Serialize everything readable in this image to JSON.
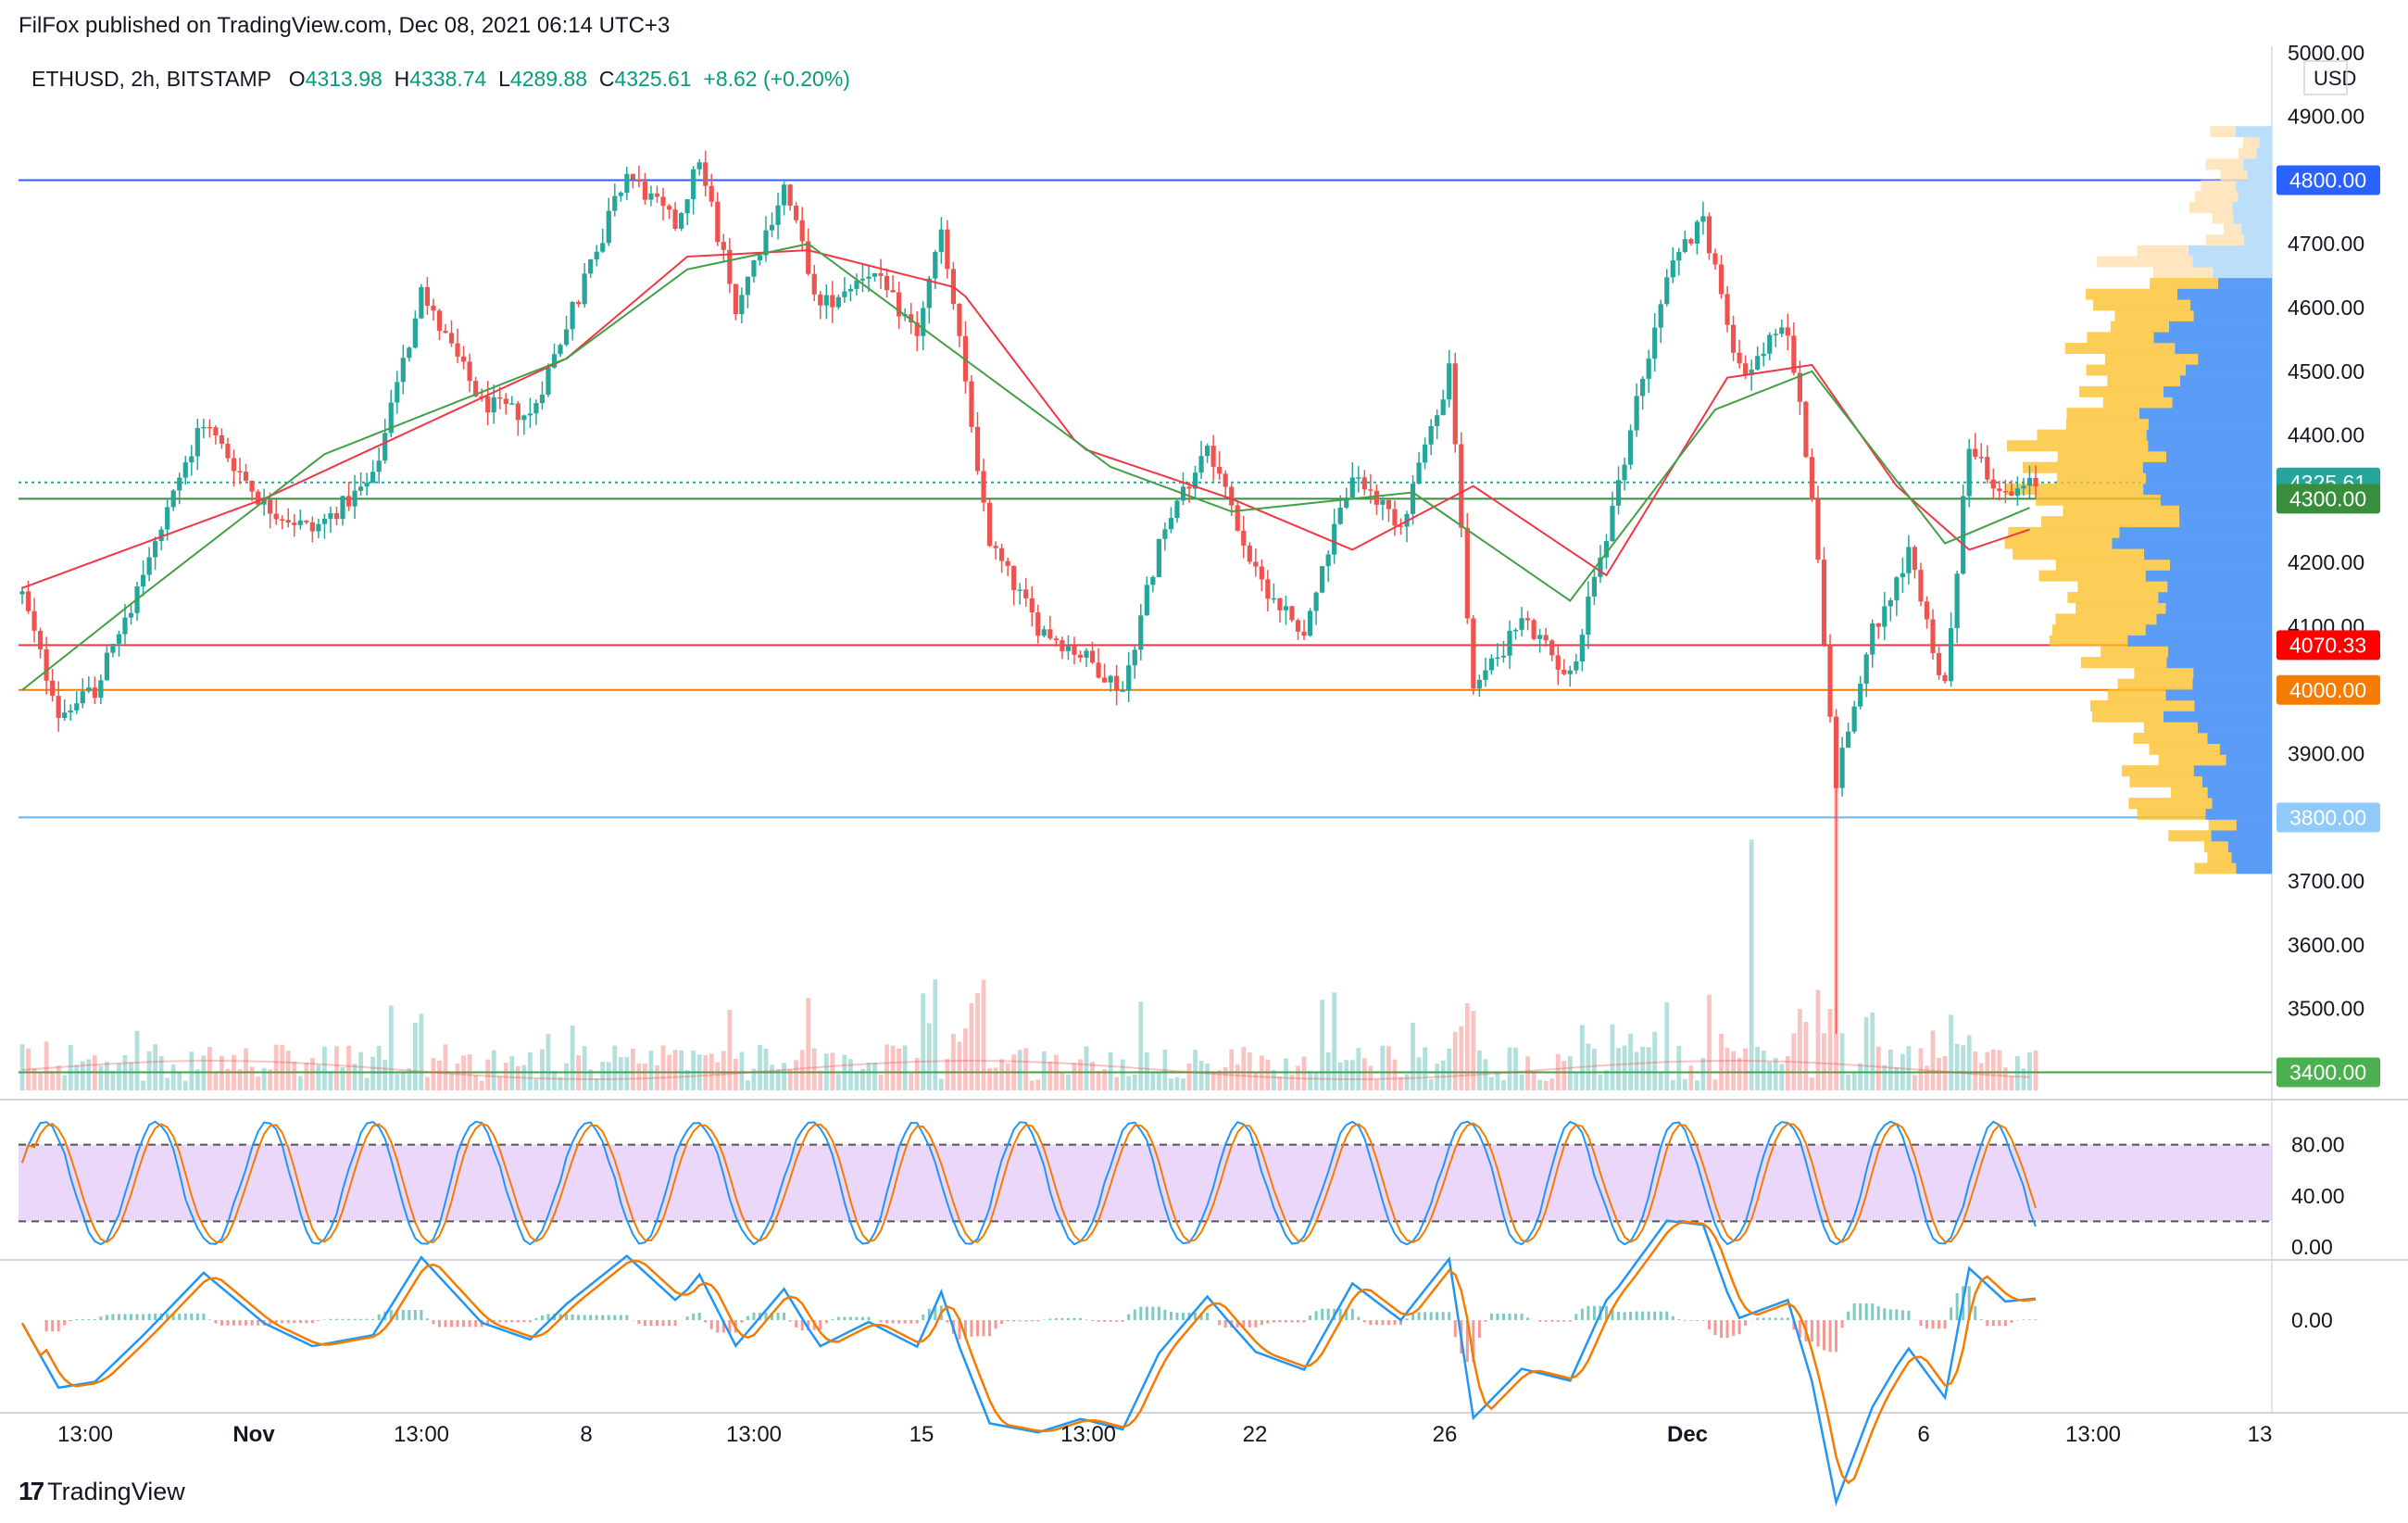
{
  "header": {
    "publisher_line": "FilFox published on TradingView.com, Dec 08, 2021 06:14 UTC+3"
  },
  "legend": {
    "symbol": "ETHUSD, 2h, BITSTAMP",
    "open_label": "O",
    "open": "4313.98",
    "high_label": "H",
    "high": "4338.74",
    "low_label": "L",
    "low": "4289.88",
    "close_label": "C",
    "close": "4325.61",
    "change": "+8.62 (+0.20%)"
  },
  "footer": {
    "brand": "TradingView",
    "logo_glyph": "17"
  },
  "colors": {
    "up": "#26a69a",
    "down": "#ef5350",
    "ma_fast": "#f23645",
    "ma_slow": "#43a047",
    "stoch_band": "#e1c6f7",
    "macd_line": "#2196f3",
    "signal_line": "#f57c00"
  },
  "chart_data": [
    {
      "type": "candlestick",
      "symbol": "ETHUSD",
      "interval": "2h",
      "exchange": "BITSTAMP",
      "currency": "USD",
      "x_ticks": [
        "13:00",
        "Nov",
        "13:00",
        "8",
        "13:00",
        "15",
        "13:00",
        "22",
        "26",
        "Dec",
        "6",
        "13:00",
        "13"
      ],
      "y_ticks": [
        "5000.00",
        "4900.00",
        "4800.00",
        "4700.00",
        "4600.00",
        "4500.00",
        "4400.00",
        "4300.00",
        "4200.00",
        "4100.00",
        "4000.00",
        "3900.00",
        "3800.00",
        "3700.00",
        "3600.00",
        "3500.00",
        "3400.00"
      ],
      "ylim": [
        3360,
        5010
      ],
      "price_path": [
        {
          "t": 0,
          "p": 4150
        },
        {
          "t": 6,
          "p": 3960
        },
        {
          "t": 12,
          "p": 4000
        },
        {
          "t": 20,
          "p": 4180
        },
        {
          "t": 30,
          "p": 4420
        },
        {
          "t": 40,
          "p": 4290
        },
        {
          "t": 48,
          "p": 4250
        },
        {
          "t": 58,
          "p": 4330
        },
        {
          "t": 66,
          "p": 4620
        },
        {
          "t": 76,
          "p": 4450
        },
        {
          "t": 84,
          "p": 4430
        },
        {
          "t": 92,
          "p": 4620
        },
        {
          "t": 100,
          "p": 4810
        },
        {
          "t": 108,
          "p": 4730
        },
        {
          "t": 112,
          "p": 4830
        },
        {
          "t": 118,
          "p": 4600
        },
        {
          "t": 126,
          "p": 4790
        },
        {
          "t": 132,
          "p": 4600
        },
        {
          "t": 140,
          "p": 4660
        },
        {
          "t": 148,
          "p": 4560
        },
        {
          "t": 152,
          "p": 4730
        },
        {
          "t": 160,
          "p": 4230
        },
        {
          "t": 168,
          "p": 4100
        },
        {
          "t": 176,
          "p": 4050
        },
        {
          "t": 182,
          "p": 4000
        },
        {
          "t": 188,
          "p": 4230
        },
        {
          "t": 196,
          "p": 4390
        },
        {
          "t": 204,
          "p": 4180
        },
        {
          "t": 212,
          "p": 4090
        },
        {
          "t": 220,
          "p": 4340
        },
        {
          "t": 228,
          "p": 4260
        },
        {
          "t": 236,
          "p": 4500
        },
        {
          "t": 240,
          "p": 4000
        },
        {
          "t": 248,
          "p": 4110
        },
        {
          "t": 256,
          "p": 4020
        },
        {
          "t": 264,
          "p": 4320
        },
        {
          "t": 272,
          "p": 4660
        },
        {
          "t": 278,
          "p": 4740
        },
        {
          "t": 284,
          "p": 4500
        },
        {
          "t": 292,
          "p": 4570
        },
        {
          "t": 296,
          "p": 4310
        },
        {
          "t": 300,
          "p": 3860
        },
        {
          "t": 306,
          "p": 4090
        },
        {
          "t": 312,
          "p": 4210
        },
        {
          "t": 318,
          "p": 4000
        },
        {
          "t": 322,
          "p": 4390
        },
        {
          "t": 328,
          "p": 4300
        },
        {
          "t": 333,
          "p": 4325.61
        }
      ],
      "spike_low": {
        "t": 300,
        "p": 3460
      },
      "moving_average_fast": [
        {
          "t": 0,
          "p": 4160
        },
        {
          "t": 40,
          "p": 4300
        },
        {
          "t": 90,
          "p": 4520
        },
        {
          "t": 110,
          "p": 4680
        },
        {
          "t": 130,
          "p": 4690
        },
        {
          "t": 155,
          "p": 4630
        },
        {
          "t": 175,
          "p": 4380
        },
        {
          "t": 200,
          "p": 4300
        },
        {
          "t": 220,
          "p": 4220
        },
        {
          "t": 240,
          "p": 4320
        },
        {
          "t": 262,
          "p": 4180
        },
        {
          "t": 282,
          "p": 4490
        },
        {
          "t": 296,
          "p": 4510
        },
        {
          "t": 310,
          "p": 4320
        },
        {
          "t": 322,
          "p": 4220
        },
        {
          "t": 333,
          "p": 4255
        }
      ],
      "moving_average_slow": [
        {
          "t": 0,
          "p": 4000
        },
        {
          "t": 20,
          "p": 4150
        },
        {
          "t": 50,
          "p": 4370
        },
        {
          "t": 90,
          "p": 4520
        },
        {
          "t": 110,
          "p": 4660
        },
        {
          "t": 130,
          "p": 4700
        },
        {
          "t": 180,
          "p": 4350
        },
        {
          "t": 200,
          "p": 4280
        },
        {
          "t": 230,
          "p": 4310
        },
        {
          "t": 256,
          "p": 4140
        },
        {
          "t": 280,
          "p": 4440
        },
        {
          "t": 296,
          "p": 4500
        },
        {
          "t": 318,
          "p": 4230
        },
        {
          "t": 333,
          "p": 4290
        }
      ],
      "horizontal_levels": [
        {
          "price": 4800,
          "label": "4800.00",
          "color": "#2962ff",
          "tag_color": "#2962ff"
        },
        {
          "price": 4325.61,
          "label": "4325.61",
          "color": "#26a69a",
          "tag_color": "#26a69a",
          "dotted": true
        },
        {
          "price": 4300,
          "label": "4300.00",
          "color": "#388e3c",
          "tag_color": "#388e3c"
        },
        {
          "price": 4070.33,
          "label": "4070.33",
          "color": "#f23645",
          "tag_color": "#ff0000"
        },
        {
          "price": 4000,
          "label": "4000.00",
          "color": "#f57c00",
          "tag_color": "#f57c00"
        },
        {
          "price": 3800,
          "label": "3800.00",
          "color": "#64b5f6",
          "tag_color": "#90caf9"
        },
        {
          "price": 3400,
          "label": "3400.00",
          "color": "#43a047",
          "tag_color": "#4caf50"
        }
      ],
      "volume_profile_visible": true,
      "volume_visible": true,
      "grid": false
    },
    {
      "type": "line",
      "indicator": "Stochastic RSI",
      "y_ticks": [
        "80.00",
        "40.00",
        "0.00"
      ],
      "ylim": [
        0,
        100
      ],
      "band": [
        20,
        80
      ],
      "series": [
        {
          "color": "#2196f3"
        },
        {
          "color": "#f57c00"
        }
      ]
    },
    {
      "type": "line",
      "indicator": "MACD",
      "y_ticks": [
        "0.00"
      ],
      "series": [
        {
          "color": "#2196f3"
        },
        {
          "color": "#f57c00"
        }
      ],
      "histogram": true
    }
  ]
}
